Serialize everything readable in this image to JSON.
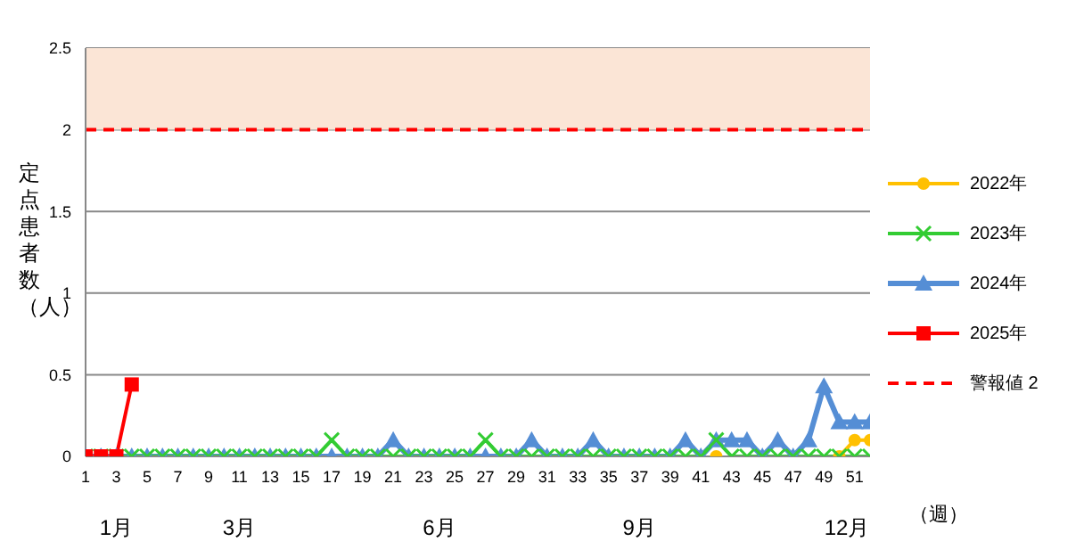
{
  "chart_data": {
    "type": "line",
    "xlabel": "（週）",
    "ylabel": "定点患者数（人）",
    "x": [
      1,
      2,
      3,
      4,
      5,
      6,
      7,
      8,
      9,
      10,
      11,
      12,
      13,
      14,
      15,
      16,
      17,
      18,
      19,
      20,
      21,
      22,
      23,
      24,
      25,
      26,
      27,
      28,
      29,
      30,
      31,
      32,
      33,
      34,
      35,
      36,
      37,
      38,
      39,
      40,
      41,
      42,
      43,
      44,
      45,
      46,
      47,
      48,
      49,
      50,
      51,
      52
    ],
    "xlim": [
      1,
      52
    ],
    "xticks": [
      1,
      3,
      5,
      7,
      9,
      11,
      13,
      15,
      17,
      19,
      21,
      23,
      25,
      27,
      29,
      31,
      33,
      35,
      37,
      39,
      41,
      43,
      45,
      47,
      49,
      51
    ],
    "ylim": [
      0,
      2.5
    ],
    "yticks": [
      0,
      0.5,
      1,
      1.5,
      2,
      2.5
    ],
    "grid": "y",
    "legend": "right",
    "series": [
      {
        "name": "2022年",
        "color": "#ffc000",
        "marker": "circle",
        "values": [
          null,
          null,
          null,
          null,
          null,
          null,
          null,
          null,
          null,
          null,
          null,
          null,
          null,
          null,
          null,
          null,
          null,
          null,
          null,
          null,
          null,
          null,
          null,
          null,
          null,
          null,
          null,
          null,
          null,
          null,
          null,
          null,
          null,
          null,
          null,
          null,
          null,
          null,
          null,
          null,
          null,
          0,
          null,
          null,
          null,
          null,
          null,
          null,
          null,
          0,
          0.1,
          0.1
        ]
      },
      {
        "name": "2023年",
        "color": "#33cc33",
        "marker": "cross",
        "values": [
          0,
          0,
          0,
          0,
          0,
          0,
          0,
          0,
          0,
          0,
          0,
          0,
          0,
          0,
          0,
          0,
          0.1,
          0,
          0,
          0,
          0,
          0,
          0,
          0,
          0,
          0,
          0.1,
          0,
          0,
          0,
          0,
          0,
          0,
          0,
          0,
          0,
          0,
          0,
          0,
          0,
          0,
          0.1,
          0,
          0,
          0,
          0,
          0,
          0,
          0,
          0,
          0,
          0
        ]
      },
      {
        "name": "2024年",
        "color": "#558ed5",
        "marker": "triangle",
        "values": [
          0,
          0,
          0,
          0,
          0,
          0,
          0,
          0,
          0,
          0,
          0,
          0,
          0,
          0,
          0,
          0,
          0,
          0,
          0,
          0,
          0.1,
          0,
          0,
          0,
          0,
          0,
          0,
          0,
          0,
          0.1,
          0,
          0,
          0,
          0.1,
          0,
          0,
          0,
          0,
          0,
          0.1,
          0,
          0.1,
          0.1,
          0.1,
          0,
          0.1,
          0,
          0.1,
          0.43,
          0.21,
          0.21,
          0.21
        ]
      },
      {
        "name": "2025年",
        "color": "#ff0000",
        "marker": "square",
        "x": [
          1,
          2,
          3,
          4
        ],
        "values": [
          0,
          0,
          0,
          0.44
        ]
      }
    ],
    "ref_lines": [
      {
        "axis": "y",
        "value": 2,
        "label": "警報値 2",
        "color": "#ff0000",
        "line_style": "dashed"
      }
    ],
    "bands": [
      {
        "axis": "y",
        "from": 2,
        "to": 2.5,
        "color": "#fbe5d6"
      }
    ],
    "annotations": [
      "1月",
      "3月",
      "6月",
      "9月",
      "12月"
    ]
  }
}
